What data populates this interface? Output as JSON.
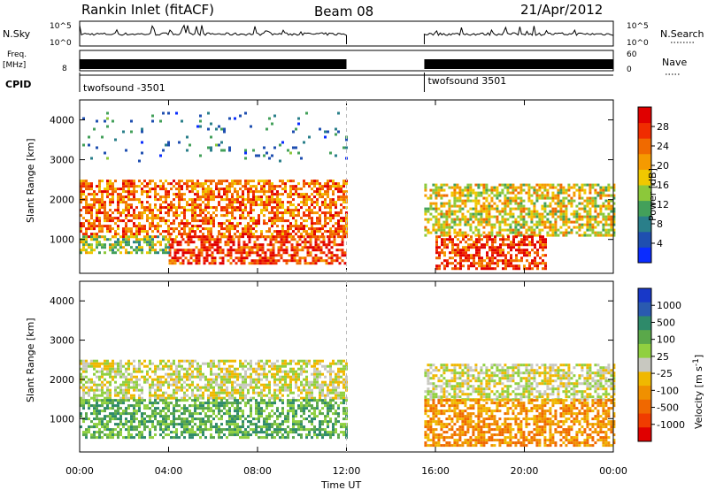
{
  "header": {
    "station": "Rankin Inlet (fitACF)",
    "beam": "Beam 08",
    "date": "21/Apr/2012"
  },
  "strip_labels": {
    "nsky": "N.Sky",
    "nsky_ticks": [
      "10^5",
      "10^0"
    ],
    "freq": "Freq.",
    "freq_unit": "[MHz]",
    "freq_ticks": [
      "8"
    ],
    "cpid": "CPID",
    "nsearch": "N.Search",
    "nsearch_ticks": [
      "10^5",
      "10^0"
    ],
    "nave": "Nave",
    "nave_ticks": [
      "60",
      "0"
    ]
  },
  "cpid_segments": [
    {
      "label": "twofsound -3501",
      "start_hour": 0,
      "end_hour": 12
    },
    {
      "label": "twofsound 3501",
      "start_hour": 15.5,
      "end_hour": 24
    }
  ],
  "data_gap_hours": [
    12,
    15.5
  ],
  "chart_data": [
    {
      "type": "heatmap",
      "quantity": "power",
      "xlabel": "",
      "ylabel": "Slant Range [km]",
      "xlim": [
        0,
        24
      ],
      "ylim": [
        150,
        4500
      ],
      "yticks": [
        1000,
        2000,
        3000,
        4000
      ],
      "colorbar": {
        "label": "Power [dB]",
        "ticks": [
          "4",
          "8",
          "12",
          "16",
          "20",
          "24",
          "28"
        ],
        "colors": [
          "#0a2cff",
          "#1f4fb0",
          "#2a7f8a",
          "#43a05a",
          "#8cc83a",
          "#f0c800",
          "#f59a00",
          "#f06a00",
          "#f02c00",
          "#e00000"
        ]
      },
      "echo_regions": [
        {
          "start_hour": 0.0,
          "end_hour": 12.0,
          "range_km": [
            1100,
            2500
          ],
          "dominant_db": 24
        },
        {
          "start_hour": 4.0,
          "end_hour": 12.0,
          "range_km": [
            400,
            1100
          ],
          "dominant_db": 28
        },
        {
          "start_hour": 0.0,
          "end_hour": 4.0,
          "range_km": [
            700,
            1100
          ],
          "dominant_db": 12
        },
        {
          "start_hour": 15.5,
          "end_hour": 24.0,
          "range_km": [
            1100,
            2400
          ],
          "dominant_db": 16
        },
        {
          "start_hour": 16.0,
          "end_hour": 21.0,
          "range_km": [
            300,
            1100
          ],
          "dominant_db": 26
        },
        {
          "start_hour": 0.0,
          "end_hour": 12.0,
          "range_km": [
            3000,
            4200
          ],
          "dominant_db": 8
        }
      ]
    },
    {
      "type": "heatmap",
      "quantity": "velocity",
      "xlabel": "Time UT",
      "ylabel": "Slant Range [km]",
      "xlim": [
        0,
        24
      ],
      "ylim": [
        150,
        4500
      ],
      "xticks": [
        "00:00",
        "04:00",
        "08:00",
        "12:00",
        "16:00",
        "20:00",
        "00:00"
      ],
      "yticks": [
        1000,
        2000,
        3000,
        4000
      ],
      "colorbar": {
        "label": "Velocity",
        "unit": "[m s",
        "unit_exp": "-1",
        "unit_close": "]",
        "ticks": [
          "1000",
          "500",
          "100",
          "25",
          "-25",
          "-100",
          "-500",
          "-1000"
        ],
        "colors": [
          "#1838c8",
          "#2a5ab0",
          "#2e8a6a",
          "#5aa84a",
          "#90d040",
          "#c8c8c0",
          "#f0b800",
          "#f09000",
          "#f06800",
          "#f03c00",
          "#e00000"
        ]
      },
      "echo_regions": [
        {
          "start_hour": 0.0,
          "end_hour": 12.0,
          "range_km": [
            1500,
            2500
          ],
          "dominant_ms": 0
        },
        {
          "start_hour": 0.0,
          "end_hour": 12.0,
          "range_km": [
            500,
            1500
          ],
          "dominant_ms": 300
        },
        {
          "start_hour": 15.5,
          "end_hour": 24.0,
          "range_km": [
            1500,
            2400
          ],
          "dominant_ms": 0
        },
        {
          "start_hour": 15.5,
          "end_hour": 24.0,
          "range_km": [
            300,
            1500
          ],
          "dominant_ms": -300
        }
      ]
    }
  ]
}
